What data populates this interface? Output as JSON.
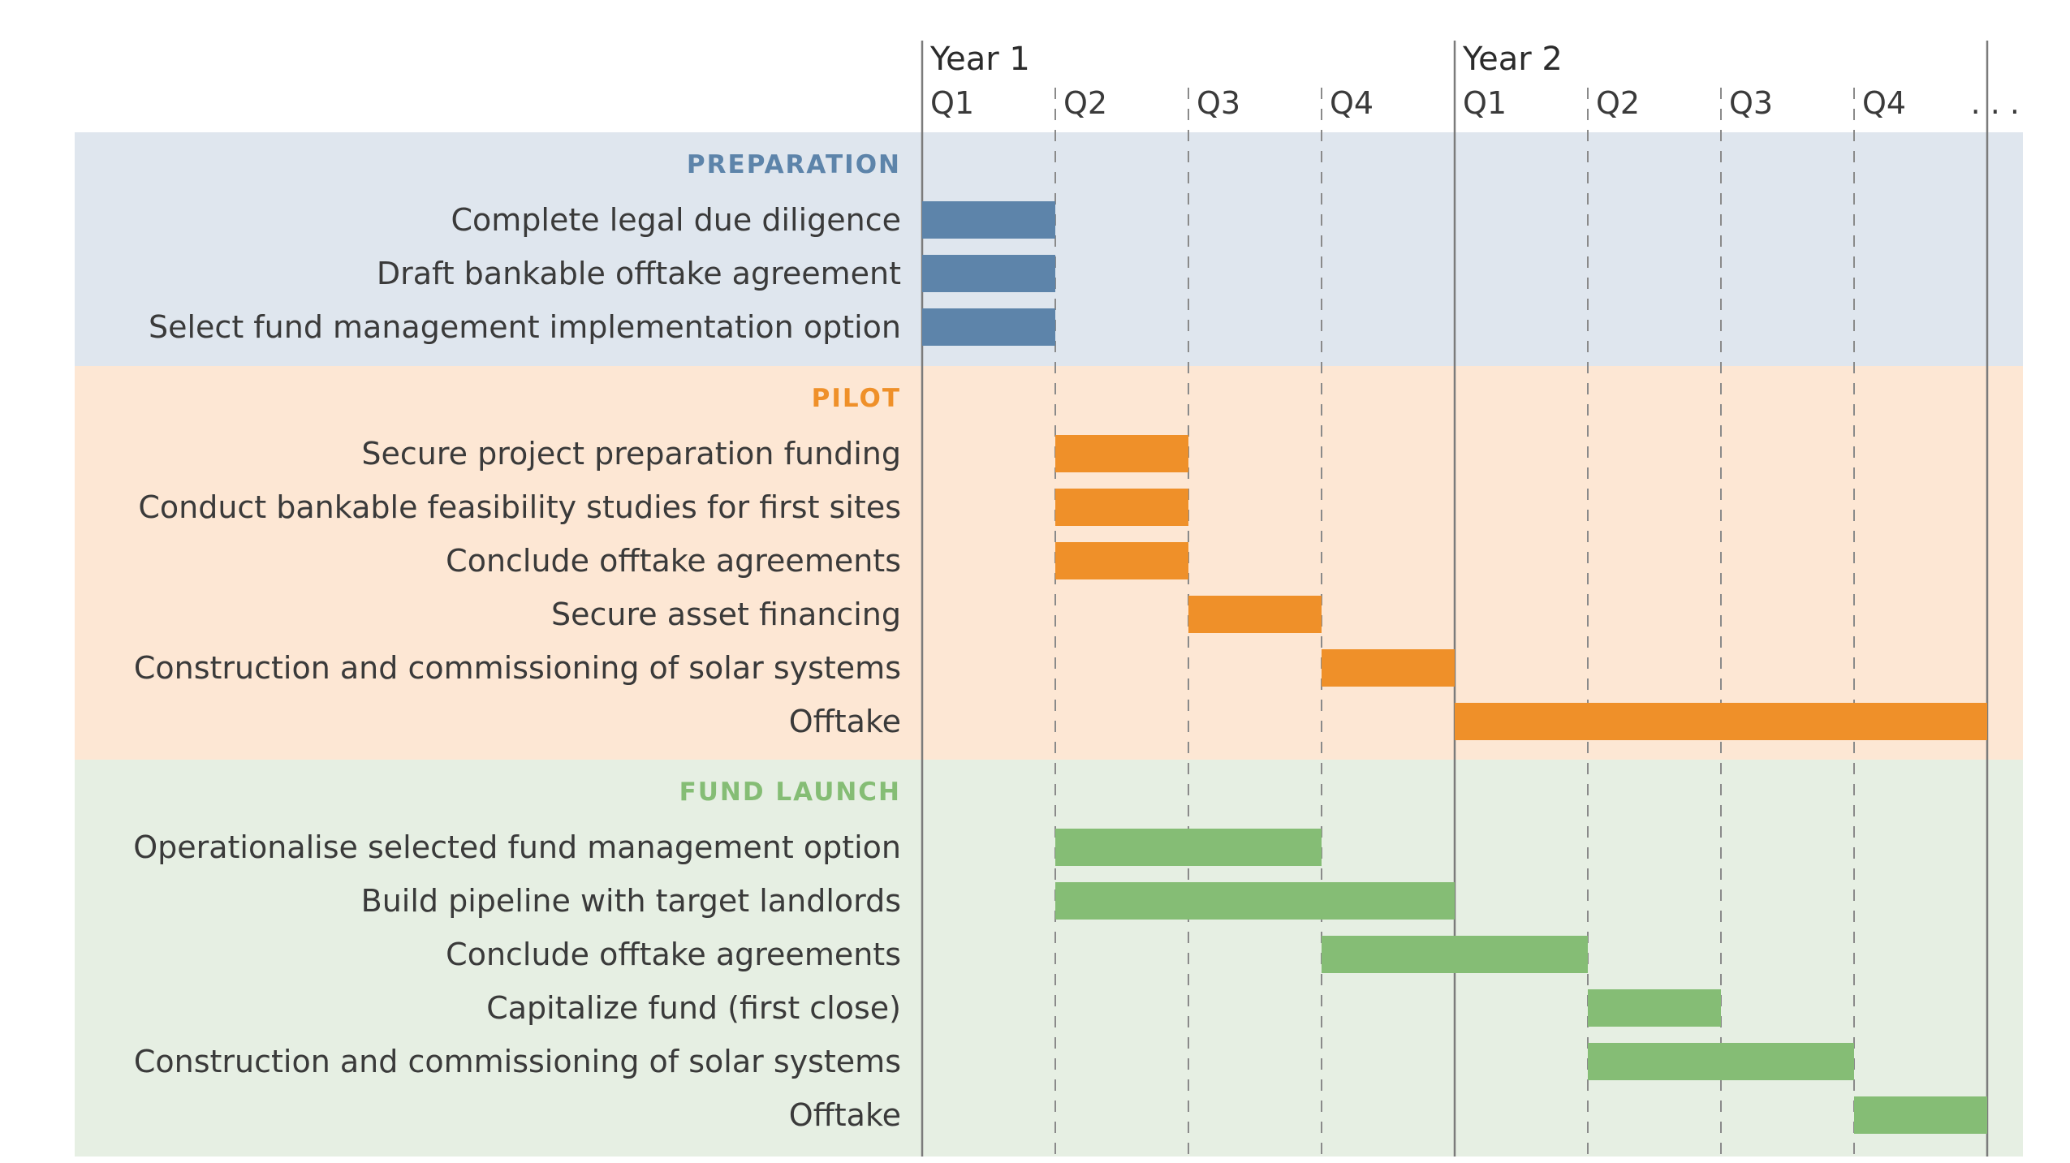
{
  "chart_data": {
    "type": "gantt",
    "time_unit": "quarter",
    "years": [
      {
        "label": "Year 1",
        "start_quarter": 0
      },
      {
        "label": "Year 2",
        "start_quarter": 4
      }
    ],
    "quarter_labels": [
      "Q1",
      "Q2",
      "Q3",
      "Q4",
      "Q1",
      "Q2",
      "Q3",
      "Q4"
    ],
    "continuation_marker": ". . .",
    "x_range_quarters": [
      0,
      8
    ],
    "sections": [
      {
        "name": "PREPARATION",
        "color": "#5d84aa",
        "label_color": "#5d84aa",
        "background": "#dfe6ee",
        "tasks": [
          {
            "label": "Complete legal due diligence",
            "start": 0,
            "end": 1
          },
          {
            "label": "Draft bankable offtake agreement",
            "start": 0,
            "end": 1
          },
          {
            "label": "Select fund management implementation option",
            "start": 0,
            "end": 1
          }
        ]
      },
      {
        "name": "PILOT",
        "color": "#ef9029",
        "label_color": "#ef9029",
        "background": "#fde7d4",
        "tasks": [
          {
            "label": "Secure project preparation funding",
            "start": 1,
            "end": 2
          },
          {
            "label": "Conduct bankable feasibility studies for first sites",
            "start": 1,
            "end": 2
          },
          {
            "label": "Conclude offtake agreements",
            "start": 1,
            "end": 2
          },
          {
            "label": "Secure asset financing",
            "start": 2,
            "end": 3
          },
          {
            "label": "Construction and commissioning of solar systems",
            "start": 3,
            "end": 4
          },
          {
            "label": "Offtake",
            "start": 4,
            "end": 8
          }
        ]
      },
      {
        "name": "FUND LAUNCH",
        "color": "#85bd75",
        "label_color": "#85bd75",
        "background": "#e6efe3",
        "tasks": [
          {
            "label": "Operationalise selected fund management option",
            "start": 1,
            "end": 3
          },
          {
            "label": "Build pipeline with target landlords",
            "start": 1,
            "end": 4
          },
          {
            "label": "Conclude offtake agreements",
            "start": 3,
            "end": 5
          },
          {
            "label": "Capitalize fund (first close)",
            "start": 5,
            "end": 6
          },
          {
            "label": "Construction and commissioning of solar systems",
            "start": 5,
            "end": 7
          },
          {
            "label": "Offtake",
            "start": 7,
            "end": 8
          }
        ]
      }
    ]
  }
}
